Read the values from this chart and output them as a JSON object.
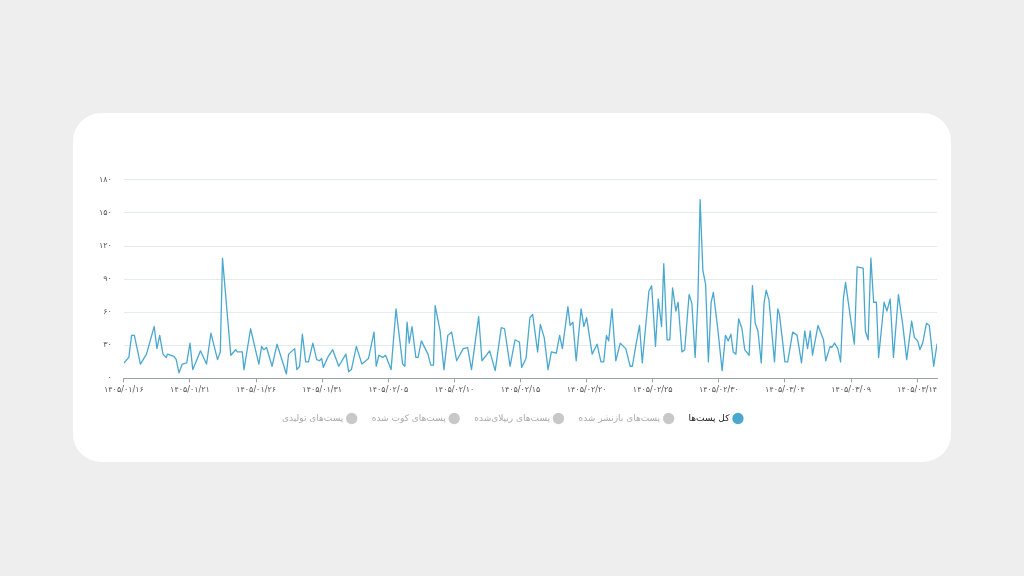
{
  "chart_data": {
    "type": "line",
    "xlim": [
      "--04-05",
      "--06-05T12:00"
    ],
    "xticks": [
      {
        "value": "--04-05",
        "label": "۱۴۰۵/۰۱/۱۶"
      },
      {
        "value": "--04-10",
        "label": "۱۴۰۵/۰۱/۲۱"
      },
      {
        "value": "--04-15",
        "label": "۱۴۰۵/۰۱/۲۶"
      },
      {
        "value": "--04-20",
        "label": "۱۴۰۵/۰۱/۳۱"
      },
      {
        "value": "--04-25",
        "label": "۱۴۰۵/۰۲/۰۵"
      },
      {
        "value": "--04-30",
        "label": "۱۴۰۵/۰۲/۱۰"
      },
      {
        "value": "--05-05",
        "label": "۱۴۰۵/۰۲/۱۵"
      },
      {
        "value": "--05-10",
        "label": "۱۴۰۵/۰۲/۲۰"
      },
      {
        "value": "--05-15",
        "label": "۱۴۰۵/۰۲/۲۵"
      },
      {
        "value": "--05-20",
        "label": "۱۴۰۵/۰۲/۳۰"
      },
      {
        "value": "--05-25",
        "label": "۱۴۰۵/۰۳/۰۴"
      },
      {
        "value": "--05-30",
        "label": "۱۴۰۵/۰۳/۰۹"
      },
      {
        "value": "--06-04",
        "label": "۱۴۰۵/۰۳/۱۴"
      }
    ],
    "ylim": [
      0,
      180
    ],
    "yticks": [
      {
        "value": 0,
        "label": "۰"
      },
      {
        "value": 30,
        "label": "۳۰"
      },
      {
        "value": 60,
        "label": "۶۰"
      },
      {
        "value": 90,
        "label": "۹۰"
      },
      {
        "value": 120,
        "label": "۱۲۰"
      },
      {
        "value": 150,
        "label": "۱۵۰"
      },
      {
        "value": 180,
        "label": "۱۸۰"
      }
    ],
    "grid": "y",
    "legend": "bottom",
    "marker": "none",
    "line_style": "solid",
    "series": [
      {
        "name": "کل پست‌ها",
        "color": "#4aa8cf",
        "x": [
          "--04-05T00:00",
          "--04-05T09:00",
          "--04-05T14:00",
          "--04-05T19:00",
          "--04-06T06:00",
          "--04-06T17:00",
          "--04-07T07:00",
          "--04-07T12:00",
          "--04-07T17:00",
          "--04-07T23:00",
          "--04-08T05:00",
          "--04-08T07:00",
          "--04-08T19:00",
          "--04-08T23:00",
          "--04-09T04:00",
          "--04-09T10:00",
          "--04-09T18:00",
          "--04-10T00:00",
          "--04-10T05:00",
          "--04-10T11:00",
          "--04-10T19:00",
          "--04-11T06:00",
          "--04-11T14:00",
          "--04-12T02:00",
          "--04-12T07:00",
          "--04-12T11:00",
          "--04-13T02:00",
          "--04-13T11:00",
          "--04-13T14:00",
          "--04-13T23:00",
          "--04-14T02:00",
          "--04-14T14:00",
          "--04-15T05:00",
          "--04-15T10:00",
          "--04-15T14:00",
          "--04-15T19:00",
          "--04-16T05:00",
          "--04-16T14:00",
          "--04-17T07:00",
          "--04-17T11:00",
          "--04-17T22:00",
          "--04-18T02:00",
          "--04-18T07:00",
          "--04-18T12:00",
          "--04-18T18:00",
          "--04-18T23:00",
          "--04-19T07:00",
          "--04-19T14:00",
          "--04-19T19:00",
          "--04-19T23:00",
          "--04-20T02:00",
          "--04-20T10:00",
          "--04-20T19:00",
          "--04-21T06:00",
          "--04-21T19:00",
          "--04-22T00:00",
          "--04-22T05:00",
          "--04-22T14:00",
          "--04-23T00:00",
          "--04-23T12:00",
          "--04-23T22:00",
          "--04-24T02:00",
          "--04-24T07:00",
          "--04-24T14:00",
          "--04-24T19:00",
          "--04-25T05:00",
          "--04-25T14:00",
          "--04-26T02:00",
          "--04-26T06:00",
          "--04-26T10:00",
          "--04-26T14:00",
          "--04-26T19:00",
          "--04-27T02:00",
          "--04-27T06:00",
          "--04-27T12:00",
          "--04-28T00:00",
          "--04-28T05:00",
          "--04-28T10:00",
          "--04-28T13:00",
          "--04-28T22:00",
          "--04-29T05:00",
          "--04-29T12:00",
          "--04-29T19:00",
          "--04-30T04:00",
          "--04-30T16:00",
          "--05-01T00:00",
          "--05-01T07:00",
          "--05-01T14:00",
          "--05-01T20:00",
          "--05-02T02:00",
          "--05-02T16:00",
          "--05-03T02:00",
          "--05-03T13:00",
          "--05-03T19:00",
          "--05-04T05:00",
          "--05-04T14:00",
          "--05-04T22:00",
          "--05-05T02:00",
          "--05-05T10:00",
          "--05-05T17:00",
          "--05-05T22:00",
          "--05-06T07:00",
          "--05-06T12:00",
          "--05-06T19:00",
          "--05-07T02:00",
          "--05-07T08:00",
          "--05-07T17:00",
          "--05-07T23:00",
          "--05-08T04:00",
          "--05-08T14:00",
          "--05-08T18:00",
          "--05-08T23:00",
          "--05-09T05:00",
          "--05-09T14:00",
          "--05-09T19:00",
          "--05-10T00:00",
          "--05-10T10:00",
          "--05-10T19:00",
          "--05-11T02:00",
          "--05-11T07:00",
          "--05-11T12:00",
          "--05-11T16:00",
          "--05-11T22:00",
          "--05-12T05:00",
          "--05-12T13:00",
          "--05-12T23:00",
          "--05-13T07:00",
          "--05-13T11:00",
          "--05-13T17:00",
          "--05-14T00:00",
          "--05-14T05:00",
          "--05-14T17:00",
          "--05-14T22:00",
          "--05-15T05:00",
          "--05-15T10:00",
          "--05-15T16:00",
          "--05-15T20:00",
          "--05-16T02:00",
          "--05-16T07:00",
          "--05-16T12:00",
          "--05-16T18:00",
          "--05-16T22:00",
          "--05-17T05:00",
          "--05-17T10:00",
          "--05-17T18:00",
          "--05-17T23:00",
          "--05-18T05:00",
          "--05-18T10:00",
          "--05-18T14:00",
          "--05-18T19:00",
          "--05-19T00:00",
          "--05-19T05:00",
          "--05-19T10:00",
          "--05-19T14:00",
          "--05-19T22:00",
          "--05-20T06:00",
          "--05-20T12:00",
          "--05-20T17:00",
          "--05-20T22:00",
          "--05-21T02:00",
          "--05-21T07:00",
          "--05-21T12:00",
          "--05-21T18:00",
          "--05-21T23:00",
          "--05-22T07:00",
          "--05-22T13:00",
          "--05-22T18:00",
          "--05-22T23:00",
          "--05-23T05:00",
          "--05-23T10:00",
          "--05-23T14:00",
          "--05-23T19:00",
          "--05-24T05:00",
          "--05-24T11:00",
          "--05-24T14:00",
          "--05-25T00:00",
          "--05-25T05:00",
          "--05-25T14:00",
          "--05-25T22:00",
          "--05-26T06:00",
          "--05-26T12:00",
          "--05-26T17:00",
          "--05-26T22:00",
          "--05-27T02:00",
          "--05-27T12:00",
          "--05-27T22:00",
          "--05-28T02:00",
          "--05-28T10:00",
          "--05-28T13:00",
          "--05-28T18:00",
          "--05-29T00:00",
          "--05-29T05:00",
          "--05-29T10:00",
          "--05-29T14:00",
          "--05-30T00:00",
          "--05-30T06:00",
          "--05-30T11:00",
          "--05-30T22:00",
          "--05-31T02:00",
          "--05-31T07:00",
          "--05-31T12:00",
          "--05-31T17:00",
          "--05-31T22:00",
          "--06-01T02:00",
          "--06-01T12:00",
          "--06-01T17:00",
          "--06-01T23:00",
          "--06-02T05:00",
          "--06-02T14:00",
          "--06-02T22:00",
          "--06-03T05:00",
          "--06-03T14:00",
          "--06-03T19:00",
          "--06-04T01:00",
          "--06-04T05:00",
          "--06-04T10:00",
          "--06-04T17:00",
          "--06-04T22:00",
          "--06-05T06:00",
          "--06-05T12:00"
        ],
        "values": [
          14,
          19,
          39,
          39,
          13,
          22,
          47,
          27,
          39,
          22,
          19,
          22,
          20,
          17,
          5,
          13,
          14,
          32,
          8,
          15,
          25,
          13,
          41,
          17,
          24,
          109,
          21,
          26,
          24,
          24,
          8,
          45,
          13,
          29,
          26,
          28,
          11,
          31,
          4,
          22,
          27,
          8,
          11,
          40,
          15,
          15,
          32,
          17,
          16,
          18,
          10,
          19,
          26,
          11,
          22,
          6,
          8,
          29,
          13,
          18,
          42,
          11,
          21,
          19,
          21,
          8,
          63,
          13,
          11,
          51,
          32,
          47,
          19,
          19,
          34,
          22,
          12,
          12,
          66,
          43,
          8,
          39,
          42,
          16,
          27,
          28,
          8,
          34,
          56,
          16,
          25,
          7,
          46,
          45,
          11,
          35,
          33,
          10,
          18,
          55,
          58,
          24,
          49,
          37,
          8,
          24,
          23,
          39,
          27,
          65,
          48,
          51,
          16,
          63,
          47,
          55,
          22,
          31,
          15,
          15,
          39,
          34,
          63,
          16,
          32,
          27,
          11,
          11,
          29,
          48,
          14,
          79,
          84,
          29,
          72,
          47,
          104,
          35,
          35,
          82,
          61,
          69,
          24,
          26,
          76,
          68,
          19,
          72,
          162,
          98,
          85,
          15,
          69,
          78,
          45,
          7,
          39,
          34,
          40,
          24,
          22,
          54,
          45,
          26,
          21,
          84,
          50,
          43,
          14,
          68,
          80,
          71,
          15,
          63,
          58,
          15,
          15,
          42,
          39,
          14,
          43,
          27,
          43,
          21,
          48,
          35,
          16,
          29,
          28,
          32,
          27,
          15,
          72,
          87,
          51,
          31,
          101,
          100,
          43,
          35,
          109,
          69,
          69,
          19,
          69,
          61,
          72,
          19,
          76,
          48,
          17,
          52,
          37,
          34,
          26,
          32,
          50,
          48,
          11,
          31
        ]
      },
      {
        "name": "پست‌های بازنشر شده",
        "color": "#c8c8c8"
      },
      {
        "name": "پست‌های ریپلای‌شده",
        "color": "#c8c8c8"
      },
      {
        "name": "پست‌های کوت شده",
        "color": "#c8c8c8"
      },
      {
        "name": "پست‌های تولیدی",
        "color": "#c8c8c8"
      }
    ]
  }
}
